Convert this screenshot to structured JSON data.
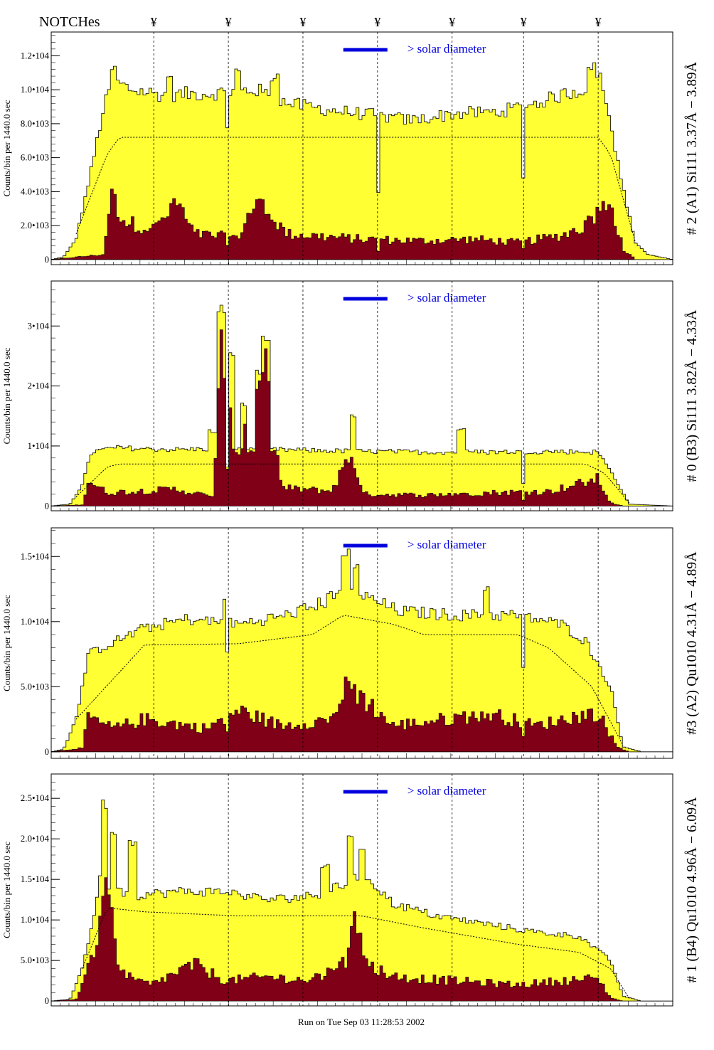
{
  "header": {
    "notches_label": "NOTCHes",
    "notch_marker": "¥",
    "footer_text": "Run on Tue Sep 03 11:28:53 2002"
  },
  "colors": {
    "total_fill": "#ffff33",
    "component_fill": "#800018",
    "solar_bar": "#0000dd",
    "axis": "#000000"
  },
  "notch_positions": [
    0.165,
    0.285,
    0.405,
    0.525,
    0.645,
    0.76,
    0.88
  ],
  "chart_data": [
    {
      "type": "area",
      "right_label": "# 2 (A1) Si111  3.37Å − 3.89Å",
      "ylabel": "Counts/bin per   1440.0 sec",
      "legend_text": "> solar diameter",
      "yticks": [
        "0",
        "2.0•103",
        "4.0•103",
        "6.0•103",
        "8.0•103",
        "1.0•104",
        "1.2•104"
      ],
      "ytick_values": [
        0,
        2000,
        4000,
        6000,
        8000,
        10000,
        12000
      ],
      "ylim": [
        -300,
        13400
      ],
      "total_knots": [
        [
          0,
          0
        ],
        [
          0.02,
          150
        ],
        [
          0.04,
          1200
        ],
        [
          0.06,
          4500
        ],
        [
          0.085,
          9000
        ],
        [
          0.1,
          10500
        ],
        [
          0.13,
          10000
        ],
        [
          0.18,
          9700
        ],
        [
          0.26,
          9800
        ],
        [
          0.33,
          10000
        ],
        [
          0.38,
          9200
        ],
        [
          0.45,
          8800
        ],
        [
          0.52,
          8500
        ],
        [
          0.58,
          8200
        ],
        [
          0.65,
          8600
        ],
        [
          0.72,
          8700
        ],
        [
          0.78,
          9200
        ],
        [
          0.84,
          9900
        ],
        [
          0.89,
          10200
        ],
        [
          0.915,
          5000
        ],
        [
          0.94,
          1000
        ],
        [
          0.96,
          300
        ],
        [
          1,
          0
        ]
      ],
      "total_peaks": [
        [
          0.1,
          11700
        ],
        [
          0.19,
          11300
        ],
        [
          0.3,
          11500
        ],
        [
          0.36,
          11000
        ],
        [
          0.87,
          11600
        ],
        [
          0.88,
          11100
        ]
      ],
      "red_knots": [
        [
          0,
          0
        ],
        [
          0.085,
          300
        ],
        [
          0.095,
          3800
        ],
        [
          0.12,
          2200
        ],
        [
          0.165,
          1800
        ],
        [
          0.2,
          3500
        ],
        [
          0.23,
          1500
        ],
        [
          0.3,
          1300
        ],
        [
          0.33,
          3500
        ],
        [
          0.38,
          1500
        ],
        [
          0.5,
          1200
        ],
        [
          0.6,
          1100
        ],
        [
          0.68,
          1200
        ],
        [
          0.75,
          1000
        ],
        [
          0.82,
          1400
        ],
        [
          0.86,
          2000
        ],
        [
          0.9,
          3500
        ],
        [
          0.92,
          600
        ],
        [
          0.94,
          0
        ],
        [
          1,
          0
        ]
      ],
      "dotted_knots": [
        [
          0.04,
          1500
        ],
        [
          0.09,
          6200
        ],
        [
          0.11,
          7200
        ],
        [
          0.88,
          7200
        ],
        [
          0.9,
          6200
        ],
        [
          0.94,
          1000
        ]
      ],
      "notch_depths": [
        0,
        0.2,
        0,
        0.55,
        0,
        0.45,
        0
      ],
      "legend_pos": "top-center"
    },
    {
      "type": "area",
      "right_label": "# 0 (B3) Si111  3.82Å − 4.33Å",
      "ylabel": "Counts/bin per   1440.0 sec",
      "legend_text": "> solar diameter",
      "yticks": [
        "0",
        "1•104",
        "2•104",
        "3•104"
      ],
      "ytick_values": [
        0,
        10000,
        20000,
        30000
      ],
      "ylim": [
        -800,
        37500
      ],
      "total_knots": [
        [
          0,
          0
        ],
        [
          0.03,
          300
        ],
        [
          0.05,
          3500
        ],
        [
          0.065,
          9000
        ],
        [
          0.1,
          9700
        ],
        [
          0.2,
          9400
        ],
        [
          0.3,
          9600
        ],
        [
          0.4,
          9300
        ],
        [
          0.5,
          9100
        ],
        [
          0.6,
          9000
        ],
        [
          0.7,
          9000
        ],
        [
          0.8,
          9100
        ],
        [
          0.88,
          9000
        ],
        [
          0.905,
          5000
        ],
        [
          0.93,
          300
        ],
        [
          1,
          0
        ]
      ],
      "total_peaks": [
        [
          0.26,
          12800
        ],
        [
          0.275,
          33500
        ],
        [
          0.29,
          26000
        ],
        [
          0.31,
          17500
        ],
        [
          0.335,
          23000
        ],
        [
          0.345,
          29000
        ],
        [
          0.485,
          15500
        ],
        [
          0.66,
          13000
        ]
      ],
      "red_knots": [
        [
          0,
          0
        ],
        [
          0.05,
          200
        ],
        [
          0.06,
          4200
        ],
        [
          0.09,
          2200
        ],
        [
          0.2,
          2800
        ],
        [
          0.26,
          1500
        ],
        [
          0.275,
          27000
        ],
        [
          0.29,
          12000
        ],
        [
          0.3,
          8000
        ],
        [
          0.335,
          21000
        ],
        [
          0.35,
          25000
        ],
        [
          0.37,
          3000
        ],
        [
          0.45,
          2500
        ],
        [
          0.485,
          9000
        ],
        [
          0.5,
          2000
        ],
        [
          0.6,
          1800
        ],
        [
          0.7,
          2200
        ],
        [
          0.8,
          2400
        ],
        [
          0.88,
          4500
        ],
        [
          0.9,
          500
        ],
        [
          0.92,
          0
        ],
        [
          1,
          0
        ]
      ],
      "dotted_knots": [
        [
          0.04,
          1500
        ],
        [
          0.09,
          6500
        ],
        [
          0.11,
          7000
        ],
        [
          0.86,
          7000
        ],
        [
          0.89,
          5500
        ],
        [
          0.93,
          500
        ]
      ],
      "notch_depths": [
        0,
        0.3,
        0,
        0,
        0,
        0.6,
        0
      ],
      "legend_pos": "top-center"
    },
    {
      "type": "area",
      "right_label": "#3 (A2) Qu1010  4.31Å − 4.89Å",
      "ylabel": "Counts/bin per   1440.0 sec",
      "legend_text": "> solar diameter",
      "yticks": [
        "0",
        "5.0•103",
        "1.0•104",
        "1.5•104"
      ],
      "ytick_values": [
        0,
        5000,
        10000,
        15000
      ],
      "ylim": [
        -500,
        17200
      ],
      "total_knots": [
        [
          0,
          0
        ],
        [
          0.02,
          200
        ],
        [
          0.04,
          2500
        ],
        [
          0.06,
          7500
        ],
        [
          0.09,
          8200
        ],
        [
          0.15,
          9500
        ],
        [
          0.22,
          10200
        ],
        [
          0.3,
          9800
        ],
        [
          0.38,
          10500
        ],
        [
          0.44,
          11500
        ],
        [
          0.47,
          13000
        ],
        [
          0.5,
          12000
        ],
        [
          0.56,
          10800
        ],
        [
          0.65,
          10500
        ],
        [
          0.75,
          10500
        ],
        [
          0.82,
          9800
        ],
        [
          0.86,
          8500
        ],
        [
          0.9,
          5000
        ],
        [
          0.92,
          400
        ],
        [
          0.95,
          0
        ],
        [
          1,
          0
        ]
      ],
      "total_peaks": [
        [
          0.475,
          15800
        ],
        [
          0.49,
          14500
        ],
        [
          0.7,
          13000
        ],
        [
          0.28,
          12000
        ]
      ],
      "red_knots": [
        [
          0,
          0
        ],
        [
          0.05,
          300
        ],
        [
          0.06,
          2600
        ],
        [
          0.1,
          1800
        ],
        [
          0.15,
          2500
        ],
        [
          0.25,
          1800
        ],
        [
          0.3,
          3200
        ],
        [
          0.37,
          2000
        ],
        [
          0.45,
          2500
        ],
        [
          0.475,
          5000
        ],
        [
          0.5,
          4200
        ],
        [
          0.55,
          2000
        ],
        [
          0.65,
          2600
        ],
        [
          0.7,
          3000
        ],
        [
          0.78,
          2000
        ],
        [
          0.85,
          2800
        ],
        [
          0.88,
          3000
        ],
        [
          0.91,
          400
        ],
        [
          0.93,
          0
        ],
        [
          1,
          0
        ]
      ],
      "dotted_knots": [
        [
          0.04,
          2500
        ],
        [
          0.15,
          8200
        ],
        [
          0.3,
          8300
        ],
        [
          0.42,
          9000
        ],
        [
          0.47,
          10500
        ],
        [
          0.55,
          9800
        ],
        [
          0.6,
          9000
        ],
        [
          0.75,
          9000
        ],
        [
          0.8,
          8000
        ],
        [
          0.87,
          5000
        ],
        [
          0.92,
          500
        ]
      ],
      "notch_depths": [
        0,
        0.35,
        0,
        0,
        0,
        0.4,
        0
      ],
      "legend_pos": "top-center"
    },
    {
      "type": "area",
      "right_label": "# 1 (B4) Qu1010 4.96Å − 6.09Å",
      "ylabel": "Counts/bin per   1440.0 sec",
      "legend_text": "> solar diameter",
      "yticks": [
        "0",
        "5.0•103",
        "1.0•104",
        "1.5•104",
        "2.0•104",
        "2.5•104"
      ],
      "ytick_values": [
        0,
        5000,
        10000,
        15000,
        20000,
        25000
      ],
      "ylim": [
        -600,
        28000
      ],
      "total_knots": [
        [
          0,
          0
        ],
        [
          0.03,
          200
        ],
        [
          0.05,
          4000
        ],
        [
          0.07,
          11000
        ],
        [
          0.08,
          16000
        ],
        [
          0.095,
          14000
        ],
        [
          0.13,
          13000
        ],
        [
          0.2,
          13500
        ],
        [
          0.28,
          13500
        ],
        [
          0.35,
          12500
        ],
        [
          0.42,
          13000
        ],
        [
          0.48,
          14500
        ],
        [
          0.5,
          16000
        ],
        [
          0.55,
          12000
        ],
        [
          0.62,
          10500
        ],
        [
          0.7,
          9500
        ],
        [
          0.78,
          8500
        ],
        [
          0.85,
          8000
        ],
        [
          0.9,
          5000
        ],
        [
          0.92,
          600
        ],
        [
          0.95,
          0
        ],
        [
          1,
          0
        ]
      ],
      "total_peaks": [
        [
          0.085,
          25000
        ],
        [
          0.1,
          21000
        ],
        [
          0.13,
          20000
        ],
        [
          0.48,
          20500
        ],
        [
          0.5,
          19000
        ],
        [
          0.44,
          17000
        ]
      ],
      "red_knots": [
        [
          0,
          0
        ],
        [
          0.04,
          200
        ],
        [
          0.06,
          4500
        ],
        [
          0.08,
          9000
        ],
        [
          0.09,
          18000
        ],
        [
          0.1,
          7000
        ],
        [
          0.12,
          3000
        ],
        [
          0.16,
          2000
        ],
        [
          0.23,
          4500
        ],
        [
          0.28,
          2500
        ],
        [
          0.35,
          3000
        ],
        [
          0.42,
          2500
        ],
        [
          0.475,
          5000
        ],
        [
          0.49,
          13000
        ],
        [
          0.5,
          5000
        ],
        [
          0.55,
          3000
        ],
        [
          0.65,
          2500
        ],
        [
          0.75,
          2000
        ],
        [
          0.82,
          2500
        ],
        [
          0.88,
          2800
        ],
        [
          0.9,
          400
        ],
        [
          0.92,
          0
        ],
        [
          1,
          0
        ]
      ],
      "dotted_knots": [
        [
          0.05,
          4000
        ],
        [
          0.09,
          11500
        ],
        [
          0.15,
          11000
        ],
        [
          0.3,
          10500
        ],
        [
          0.5,
          10500
        ],
        [
          0.6,
          9000
        ],
        [
          0.75,
          7000
        ],
        [
          0.85,
          6000
        ],
        [
          0.9,
          4000
        ],
        [
          0.93,
          300
        ]
      ],
      "notch_depths": [
        0,
        0,
        0,
        0,
        0,
        0,
        0
      ],
      "legend_pos": "top-center"
    }
  ]
}
